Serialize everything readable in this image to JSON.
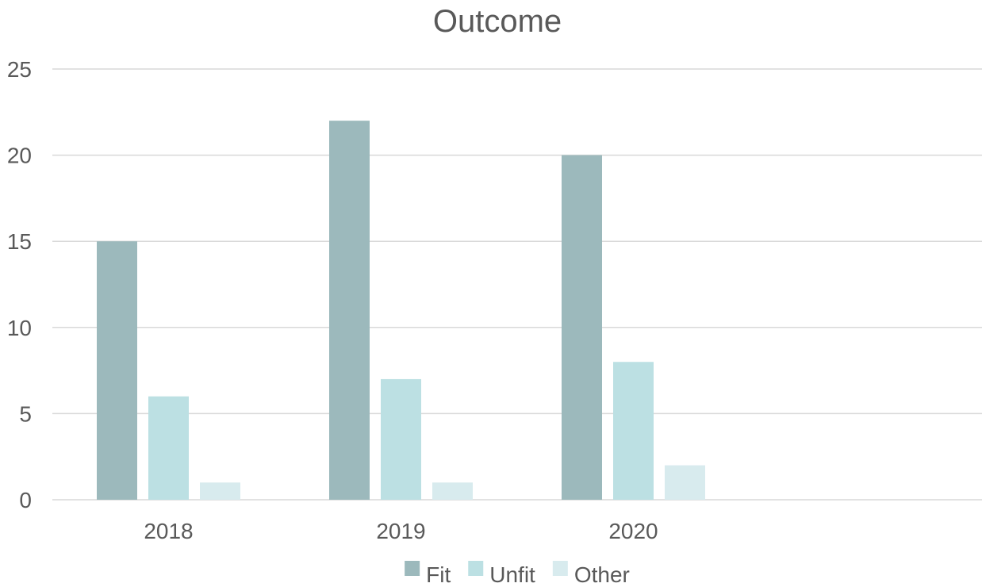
{
  "chart_data": {
    "type": "bar",
    "title": "Outcome",
    "xlabel": "",
    "ylabel": "",
    "categories": [
      "2018",
      "2019",
      "2020",
      ""
    ],
    "series": [
      {
        "name": "Fit",
        "values": [
          15,
          22,
          20,
          null
        ],
        "color": "#9cb9bc"
      },
      {
        "name": "Unfit",
        "values": [
          6,
          7,
          8,
          null
        ],
        "color": "#bce0e3"
      },
      {
        "name": "Other",
        "values": [
          1,
          1,
          2,
          null
        ],
        "color": "#d8ebee"
      }
    ],
    "ylim": [
      0,
      25
    ],
    "yticks": [
      0,
      5,
      10,
      15,
      20,
      25
    ],
    "grid": true,
    "legend_position": "bottom"
  }
}
